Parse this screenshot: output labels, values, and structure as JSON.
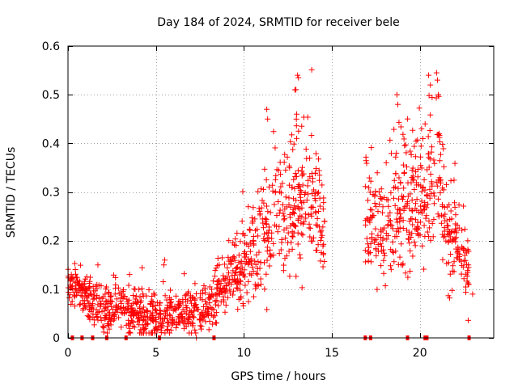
{
  "chart_data": {
    "type": "scatter",
    "title": "Day 184 of 2024, SRMTID for receiver bele",
    "xlabel": "GPS time / hours",
    "ylabel": "SRMTID / TECUs",
    "xlim": [
      0,
      24.2
    ],
    "ylim": [
      0,
      0.6
    ],
    "xticks": [
      0,
      5,
      10,
      15,
      20
    ],
    "yticks": [
      0,
      0.1,
      0.2,
      0.3,
      0.4,
      0.5,
      0.6
    ],
    "grid": true,
    "marker": "+",
    "color": "#ff0000",
    "series": [
      {
        "name": "SRMTID",
        "profile": [
          {
            "x": 0.0,
            "y": 0.1,
            "spread": 0.025
          },
          {
            "x": 0.5,
            "y": 0.11,
            "spread": 0.03
          },
          {
            "x": 1.0,
            "y": 0.08,
            "spread": 0.03
          },
          {
            "x": 2.0,
            "y": 0.05,
            "spread": 0.03
          },
          {
            "x": 3.0,
            "y": 0.065,
            "spread": 0.035
          },
          {
            "x": 4.0,
            "y": 0.05,
            "spread": 0.035
          },
          {
            "x": 5.0,
            "y": 0.04,
            "spread": 0.03
          },
          {
            "x": 6.0,
            "y": 0.05,
            "spread": 0.035
          },
          {
            "x": 7.0,
            "y": 0.05,
            "spread": 0.035
          },
          {
            "x": 8.0,
            "y": 0.06,
            "spread": 0.035
          },
          {
            "x": 9.0,
            "y": 0.12,
            "spread": 0.05
          },
          {
            "x": 10.0,
            "y": 0.14,
            "spread": 0.06
          },
          {
            "x": 11.0,
            "y": 0.2,
            "spread": 0.08
          },
          {
            "x": 12.0,
            "y": 0.24,
            "spread": 0.09
          },
          {
            "x": 13.0,
            "y": 0.28,
            "spread": 0.1
          },
          {
            "x": 14.0,
            "y": 0.28,
            "spread": 0.09
          },
          {
            "x": 14.5,
            "y": 0.2,
            "spread": 0.08
          },
          {
            "x": 17.0,
            "y": 0.25,
            "spread": 0.08
          },
          {
            "x": 18.0,
            "y": 0.22,
            "spread": 0.09
          },
          {
            "x": 19.0,
            "y": 0.28,
            "spread": 0.1
          },
          {
            "x": 20.0,
            "y": 0.28,
            "spread": 0.1
          },
          {
            "x": 21.0,
            "y": 0.33,
            "spread": 0.11
          },
          {
            "x": 21.5,
            "y": 0.22,
            "spread": 0.07
          },
          {
            "x": 22.0,
            "y": 0.2,
            "spread": 0.07
          },
          {
            "x": 22.8,
            "y": 0.13,
            "spread": 0.04
          }
        ],
        "gaps": [
          [
            14.6,
            16.9
          ]
        ],
        "range": [
          0.0,
          22.8
        ],
        "count": 1700
      }
    ],
    "outliers": [
      {
        "x": 12.9,
        "y": 0.51
      },
      {
        "x": 13.05,
        "y": 0.54
      },
      {
        "x": 13.1,
        "y": 0.535
      },
      {
        "x": 13.0,
        "y": 0.46
      },
      {
        "x": 11.3,
        "y": 0.47
      },
      {
        "x": 11.35,
        "y": 0.45
      },
      {
        "x": 18.7,
        "y": 0.5
      },
      {
        "x": 18.75,
        "y": 0.48
      },
      {
        "x": 20.5,
        "y": 0.54
      },
      {
        "x": 20.6,
        "y": 0.52
      },
      {
        "x": 20.95,
        "y": 0.545
      },
      {
        "x": 21.0,
        "y": 0.53
      },
      {
        "x": 21.05,
        "y": 0.5
      },
      {
        "x": 20.3,
        "y": 0.44
      },
      {
        "x": 20.1,
        "y": 0.43
      },
      {
        "x": 13.0,
        "y": 0.41
      },
      {
        "x": 21.1,
        "y": 0.42
      },
      {
        "x": 1.7,
        "y": 0.15
      },
      {
        "x": 5.5,
        "y": 0.16
      },
      {
        "x": 5.45,
        "y": 0.15
      },
      {
        "x": 23.0,
        "y": 0.09
      },
      {
        "x": 7.3,
        "y": 0.0
      },
      {
        "x": 9.9,
        "y": 0.24
      },
      {
        "x": 10.9,
        "y": 0.26
      }
    ],
    "zero_markers": [
      0.25,
      0.8,
      1.4,
      2.2,
      3.3,
      5.2,
      8.3,
      16.9,
      17.2,
      19.3,
      20.3,
      20.4,
      22.8
    ]
  }
}
